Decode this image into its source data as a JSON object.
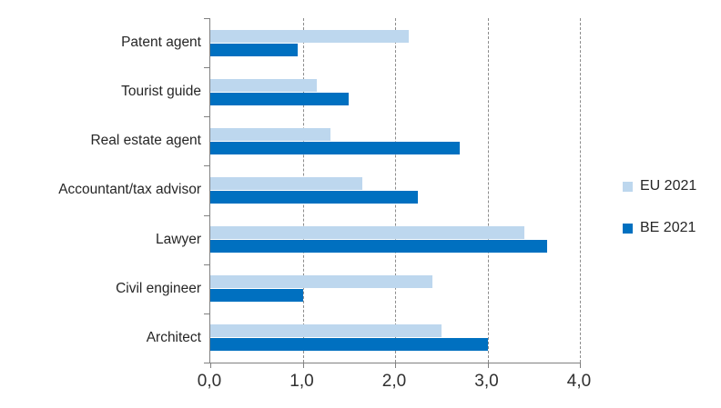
{
  "chart_data": {
    "type": "bar",
    "orientation": "horizontal",
    "title": "",
    "categories": [
      "Patent agent",
      "Tourist guide",
      "Real estate agent",
      "Accountant/tax advisor",
      "Lawyer",
      "Civil engineer",
      "Architect"
    ],
    "series": [
      {
        "name": "EU 2021",
        "color": "#BDD7EE",
        "values": [
          2.15,
          1.15,
          1.3,
          1.65,
          3.4,
          2.4,
          2.5
        ]
      },
      {
        "name": "BE 2021",
        "color": "#0070C0",
        "values": [
          0.95,
          1.5,
          2.7,
          2.25,
          3.65,
          1.0,
          3.0
        ]
      }
    ],
    "xlim": [
      0,
      4
    ],
    "x_tick_labels": [
      "0,0",
      "1,0",
      "2,0",
      "3,0",
      "4,0"
    ],
    "grid": "vertical-dashed",
    "legend_position": "right"
  },
  "colors": {
    "axis": "#808080",
    "gridline": "#8C8C8C",
    "text": "#262626",
    "background": "#FFFFFF"
  }
}
